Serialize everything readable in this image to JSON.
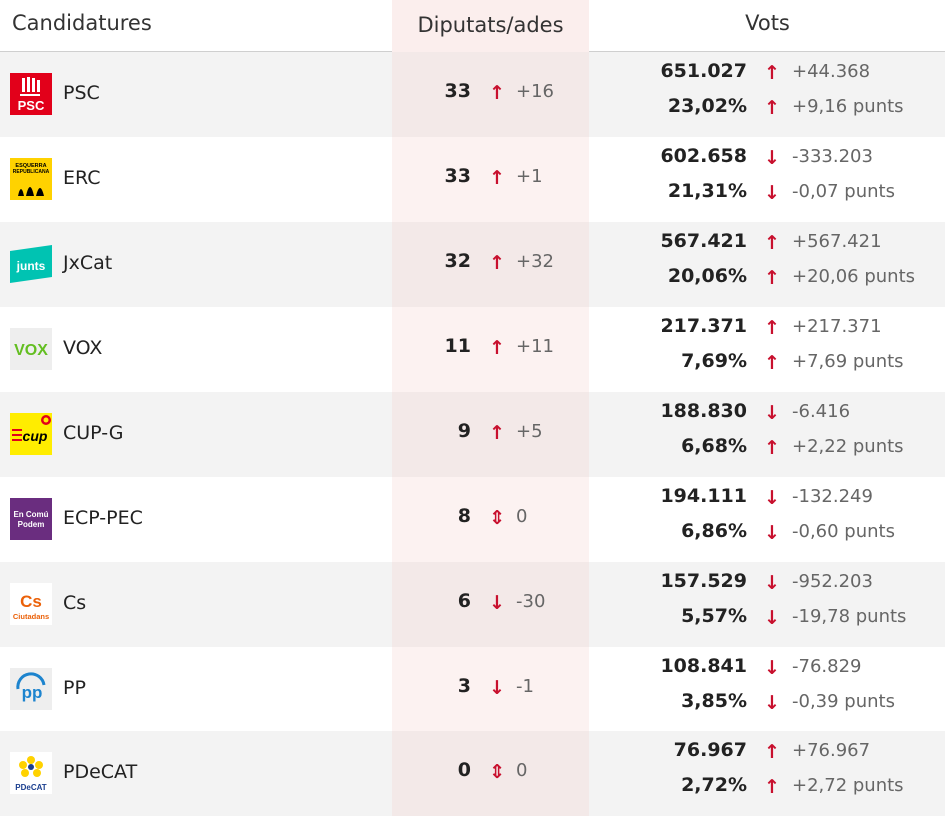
{
  "header": {
    "candidatures": "Candidatures",
    "diputats": "Diputats/ades",
    "vots": "Vots"
  },
  "colors": {
    "up_arrow": "#c8102e",
    "down_arrow": "#c8102e",
    "diputats_column_bg": "#fbeeed",
    "shaded_row_bg": "#f3f3f3"
  },
  "arrows": {
    "up": "↑",
    "down": "↓",
    "equal": "⇕"
  },
  "rows": [
    {
      "party": "PSC",
      "logo": "psc-logo",
      "seats": "33",
      "seats_trend": "up",
      "seats_diff": "+16",
      "votes": "651.027",
      "votes_trend": "up",
      "votes_diff": "+44.368",
      "pct": "23,02%",
      "pct_trend": "up",
      "pct_diff": "+9,16 punts"
    },
    {
      "party": "ERC",
      "logo": "erc-logo",
      "seats": "33",
      "seats_trend": "up",
      "seats_diff": "+1",
      "votes": "602.658",
      "votes_trend": "down",
      "votes_diff": "-333.203",
      "pct": "21,31%",
      "pct_trend": "down",
      "pct_diff": "-0,07 punts"
    },
    {
      "party": "JxCat",
      "logo": "junts-logo",
      "seats": "32",
      "seats_trend": "up",
      "seats_diff": "+32",
      "votes": "567.421",
      "votes_trend": "up",
      "votes_diff": "+567.421",
      "pct": "20,06%",
      "pct_trend": "up",
      "pct_diff": "+20,06 punts"
    },
    {
      "party": "VOX",
      "logo": "vox-logo",
      "seats": "11",
      "seats_trend": "up",
      "seats_diff": "+11",
      "votes": "217.371",
      "votes_trend": "up",
      "votes_diff": "+217.371",
      "pct": "7,69%",
      "pct_trend": "up",
      "pct_diff": "+7,69 punts"
    },
    {
      "party": "CUP-G",
      "logo": "cup-logo",
      "seats": "9",
      "seats_trend": "up",
      "seats_diff": "+5",
      "votes": "188.830",
      "votes_trend": "down",
      "votes_diff": "-6.416",
      "pct": "6,68%",
      "pct_trend": "up",
      "pct_diff": "+2,22 punts"
    },
    {
      "party": "ECP-PEC",
      "logo": "ecp-logo",
      "seats": "8",
      "seats_trend": "equal",
      "seats_diff": "0",
      "votes": "194.111",
      "votes_trend": "down",
      "votes_diff": "-132.249",
      "pct": "6,86%",
      "pct_trend": "down",
      "pct_diff": "-0,60 punts"
    },
    {
      "party": "Cs",
      "logo": "cs-logo",
      "seats": "6",
      "seats_trend": "down",
      "seats_diff": "-30",
      "votes": "157.529",
      "votes_trend": "down",
      "votes_diff": "-952.203",
      "pct": "5,57%",
      "pct_trend": "down",
      "pct_diff": "-19,78 punts"
    },
    {
      "party": "PP",
      "logo": "pp-logo",
      "seats": "3",
      "seats_trend": "down",
      "seats_diff": "-1",
      "votes": "108.841",
      "votes_trend": "down",
      "votes_diff": "-76.829",
      "pct": "3,85%",
      "pct_trend": "down",
      "pct_diff": "-0,39 punts"
    },
    {
      "party": "PDeCAT",
      "logo": "pdecat-logo",
      "seats": "0",
      "seats_trend": "equal",
      "seats_diff": "0",
      "votes": "76.967",
      "votes_trend": "up",
      "votes_diff": "+76.967",
      "pct": "2,72%",
      "pct_trend": "up",
      "pct_diff": "+2,72 punts"
    }
  ],
  "logos": {
    "erc": {
      "line1": "ESQUERRA",
      "line2": "REPUBLICANA"
    },
    "junts": {
      "text": "junts"
    },
    "vox": {
      "text": "VOX"
    },
    "cup": {
      "text": "cup"
    },
    "ecp": {
      "line1": "En Comú",
      "line2": "Podem"
    },
    "cs": {
      "line1": "Cs",
      "line2": "Ciutadans"
    },
    "pp": {
      "text": "pp"
    },
    "pdecat": {
      "text": "PDeCAT"
    }
  }
}
